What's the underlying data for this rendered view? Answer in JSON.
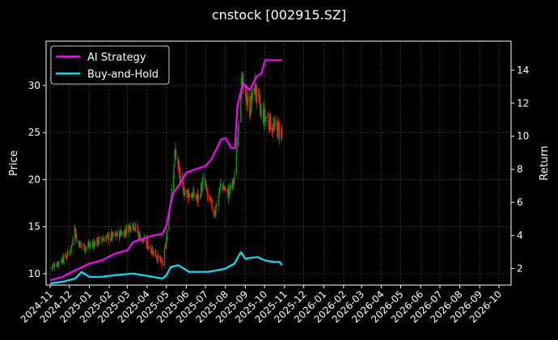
{
  "chart_data": {
    "type": "line",
    "title": "cnstock [002915.SZ]",
    "xlabel": "",
    "ylabel": "Price",
    "y2label": "Return",
    "grid": true,
    "legend_position": "top-left",
    "x_ticks": [
      "2024-11",
      "2024-12",
      "2025-01",
      "2025-02",
      "2025-03",
      "2025-04",
      "2025-05",
      "2025-06",
      "2025-07",
      "2025-08",
      "2025-09",
      "2025-10",
      "2025-11",
      "2025-12",
      "2026-01",
      "2026-02",
      "2026-03",
      "2026-04",
      "2026-05",
      "2026-06",
      "2026-07",
      "2026-08",
      "2026-09",
      "2026-10"
    ],
    "price_axis": {
      "ticks": [
        10,
        15,
        20,
        25,
        30
      ],
      "range": [
        8.8,
        34.7
      ]
    },
    "return_axis": {
      "ticks": [
        2,
        4,
        6,
        8,
        10,
        12,
        14
      ],
      "range": [
        1.0,
        15.75
      ]
    },
    "series": [
      {
        "name": "AI Strategy",
        "color": "#ff00ff",
        "axis": "return",
        "points": [
          [
            "2024-11-01",
            1.3
          ],
          [
            "2024-11-20",
            1.5
          ],
          [
            "2024-12-10",
            1.9
          ],
          [
            "2025-01-01",
            2.3
          ],
          [
            "2025-01-20",
            2.5
          ],
          [
            "2025-02-10",
            2.9
          ],
          [
            "2025-03-01",
            3.1
          ],
          [
            "2025-03-10",
            3.6
          ],
          [
            "2025-03-25",
            3.8
          ],
          [
            "2025-04-10",
            4.0
          ],
          [
            "2025-04-25",
            4.1
          ],
          [
            "2025-05-01",
            4.6
          ],
          [
            "2025-05-06",
            5.6
          ],
          [
            "2025-05-12",
            6.6
          ],
          [
            "2025-05-20",
            7.0
          ],
          [
            "2025-06-01",
            7.8
          ],
          [
            "2025-06-15",
            8.0
          ],
          [
            "2025-07-01",
            8.2
          ],
          [
            "2025-07-10",
            8.6
          ],
          [
            "2025-07-25",
            9.8
          ],
          [
            "2025-08-01",
            9.9
          ],
          [
            "2025-08-10",
            9.3
          ],
          [
            "2025-08-16",
            9.3
          ],
          [
            "2025-08-18",
            10.8
          ],
          [
            "2025-08-20",
            11.9
          ],
          [
            "2025-08-28",
            13.2
          ],
          [
            "2025-09-08",
            12.8
          ],
          [
            "2025-09-18",
            13.6
          ],
          [
            "2025-09-26",
            13.8
          ],
          [
            "2025-10-02",
            14.6
          ],
          [
            "2025-10-28",
            14.6
          ]
        ]
      },
      {
        "name": "Buy-and-Hold",
        "color": "#00e5ff",
        "axis": "return",
        "points": [
          [
            "2024-11-01",
            1.1
          ],
          [
            "2024-11-20",
            1.2
          ],
          [
            "2024-12-10",
            1.4
          ],
          [
            "2024-12-20",
            1.8
          ],
          [
            "2025-01-01",
            1.5
          ],
          [
            "2025-01-20",
            1.5
          ],
          [
            "2025-02-10",
            1.6
          ],
          [
            "2025-03-10",
            1.7
          ],
          [
            "2025-03-25",
            1.6
          ],
          [
            "2025-04-10",
            1.5
          ],
          [
            "2025-04-25",
            1.4
          ],
          [
            "2025-05-01",
            1.6
          ],
          [
            "2025-05-08",
            2.1
          ],
          [
            "2025-05-20",
            2.2
          ],
          [
            "2025-06-05",
            1.8
          ],
          [
            "2025-06-20",
            1.8
          ],
          [
            "2025-07-05",
            1.8
          ],
          [
            "2025-07-20",
            1.9
          ],
          [
            "2025-08-01",
            2.0
          ],
          [
            "2025-08-15",
            2.3
          ],
          [
            "2025-08-25",
            3.0
          ],
          [
            "2025-09-01",
            2.6
          ],
          [
            "2025-09-20",
            2.7
          ],
          [
            "2025-10-01",
            2.5
          ],
          [
            "2025-10-15",
            2.4
          ],
          [
            "2025-10-25",
            2.4
          ],
          [
            "2025-10-28",
            2.2
          ]
        ]
      }
    ],
    "candles": {
      "up_color": "#00a000",
      "down_color": "#ff2020",
      "anchors": [
        [
          "2024-11-01",
          10.6
        ],
        [
          "2024-11-15",
          11.3
        ],
        [
          "2024-11-28",
          12.0
        ],
        [
          "2024-12-05",
          13.0
        ],
        [
          "2024-12-08",
          16.0
        ],
        [
          "2024-12-12",
          13.5
        ],
        [
          "2024-12-25",
          12.8
        ],
        [
          "2025-01-10",
          13.3
        ],
        [
          "2025-01-25",
          13.8
        ],
        [
          "2025-02-10",
          14.0
        ],
        [
          "2025-02-25",
          14.5
        ],
        [
          "2025-03-10",
          15.4
        ],
        [
          "2025-03-20",
          14.0
        ],
        [
          "2025-04-05",
          12.8
        ],
        [
          "2025-04-15",
          12.0
        ],
        [
          "2025-04-25",
          11.0
        ],
        [
          "2025-05-01",
          13.5
        ],
        [
          "2025-05-10",
          20.0
        ],
        [
          "2025-05-15",
          23.0
        ],
        [
          "2025-05-25",
          19.0
        ],
        [
          "2025-06-05",
          18.5
        ],
        [
          "2025-06-20",
          18.0
        ],
        [
          "2025-06-28",
          20.0
        ],
        [
          "2025-07-05",
          18.0
        ],
        [
          "2025-07-15",
          16.5
        ],
        [
          "2025-07-25",
          19.5
        ],
        [
          "2025-08-05",
          18.5
        ],
        [
          "2025-08-15",
          20.0
        ],
        [
          "2025-08-20",
          25.0
        ],
        [
          "2025-08-25",
          30.0
        ],
        [
          "2025-09-01",
          29.0
        ],
        [
          "2025-09-08",
          27.5
        ],
        [
          "2025-09-15",
          30.0
        ],
        [
          "2025-09-25",
          27.0
        ],
        [
          "2025-10-05",
          26.5
        ],
        [
          "2025-10-15",
          25.5
        ],
        [
          "2025-10-28",
          25.0
        ]
      ]
    }
  }
}
